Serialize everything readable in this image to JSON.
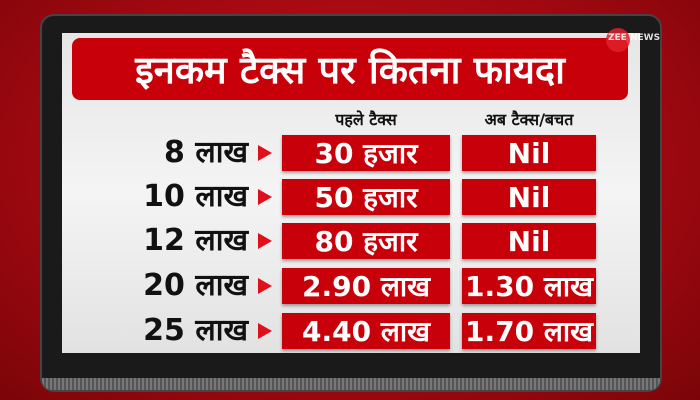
{
  "title": "इनकम टैक्स पर कितना फायदा",
  "logo": "ZEE NEWS",
  "colors": {
    "accent": "#c8000a",
    "background": "#a00810"
  },
  "columns": [
    "पहले टैक्स",
    "अब टैक्स/बचत"
  ],
  "rows": [
    {
      "income": "8 लाख",
      "before": "30 हजार",
      "after": "Nil"
    },
    {
      "income": "10 लाख",
      "before": "50 हजार",
      "after": "Nil"
    },
    {
      "income": "12 लाख",
      "before": "80 हजार",
      "after": "Nil"
    },
    {
      "income": "20 लाख",
      "before": "2.90 लाख",
      "after": "1.30 लाख"
    },
    {
      "income": "25 लाख",
      "before": "4.40 लाख",
      "after": "1.70 लाख"
    }
  ]
}
